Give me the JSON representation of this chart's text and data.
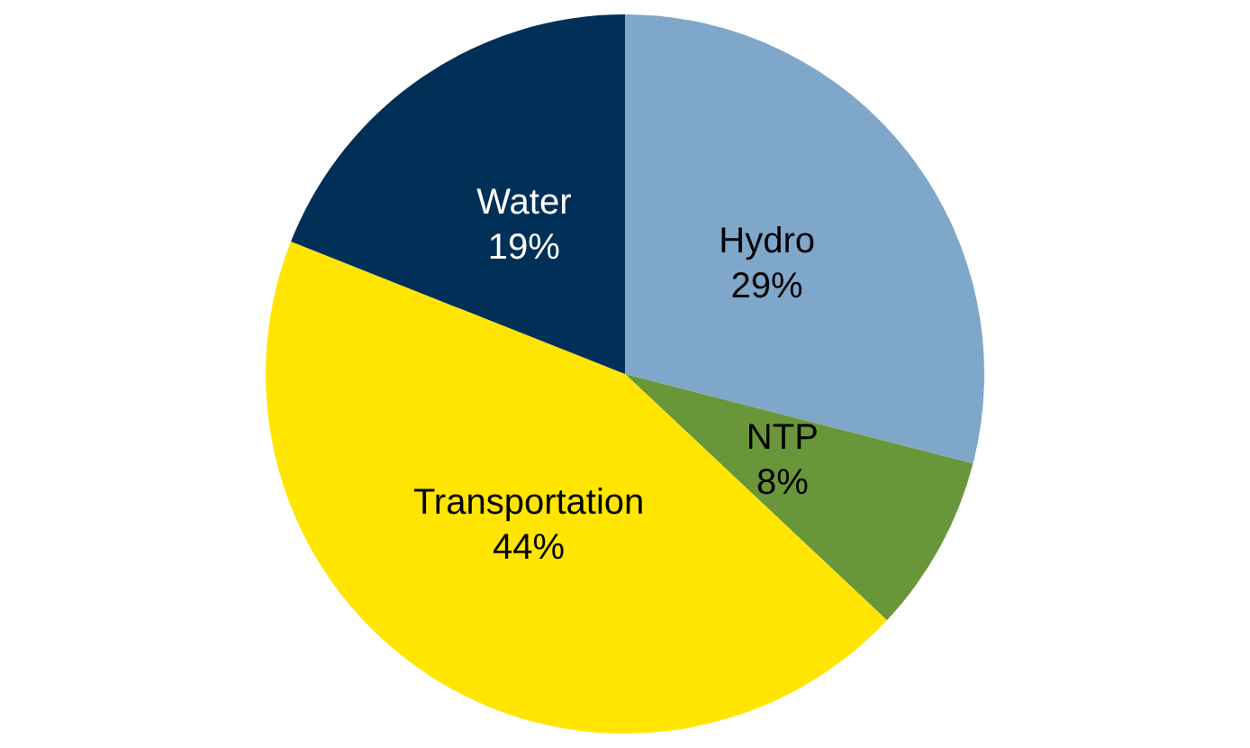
{
  "chart_data": {
    "type": "pie",
    "categories": [
      "Hydro",
      "NTP",
      "Transportation",
      "Water"
    ],
    "values": [
      29,
      8,
      44,
      19
    ],
    "colors": [
      "#7fa7c9",
      "#6a963a",
      "#ffe500",
      "#003057"
    ],
    "value_labels": [
      "29%",
      "8%",
      "44%",
      "19%"
    ],
    "legend": false
  }
}
